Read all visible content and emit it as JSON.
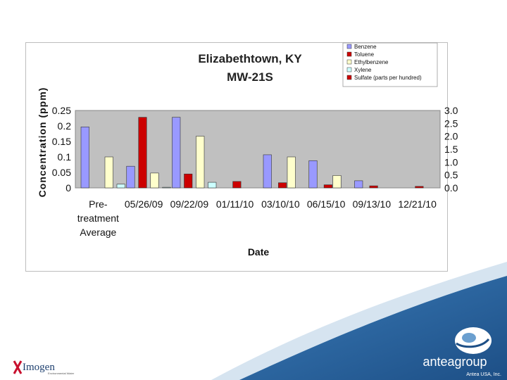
{
  "chart_data": {
    "type": "bar",
    "title": [
      "Elizabethtown, KY",
      "MW-21S"
    ],
    "xlabel": "Date",
    "ylabel": "Concentration (ppm)",
    "ylim": [
      0,
      0.25
    ],
    "y2lim": [
      0,
      3.0
    ],
    "yticks": [
      "0.25",
      "0.2",
      "0.15",
      "0.1",
      "0.05",
      "0"
    ],
    "y2ticks": [
      "3.0",
      "2.5",
      "2.0",
      "1.5",
      "1.0",
      "0.5",
      "0.0"
    ],
    "categories": [
      [
        "Pre-",
        "treatment",
        "Average"
      ],
      [
        "05/26/09"
      ],
      [
        "09/22/09"
      ],
      [
        "01/11/10"
      ],
      [
        "03/10/10"
      ],
      [
        "06/15/10"
      ],
      [
        "09/13/10"
      ],
      [
        "12/21/10"
      ]
    ],
    "legend_position": "top-right",
    "grid": false,
    "series": [
      {
        "name": "Benzene",
        "axis": "left",
        "color": "#9999ff",
        "values": [
          0.197,
          0.07,
          0.228,
          0,
          0.107,
          0.088,
          0.023,
          0
        ]
      },
      {
        "name": "Toluene",
        "axis": "left",
        "color": "#cc0000",
        "values": [
          0,
          0.228,
          0.045,
          0,
          0,
          0,
          0,
          0
        ]
      },
      {
        "name": "Ethylbenzene",
        "axis": "left",
        "color": "#ffffcc",
        "values": [
          0.1,
          0.048,
          0.167,
          0,
          0.1,
          0.04,
          0,
          0
        ]
      },
      {
        "name": "Xylene",
        "axis": "left",
        "color": "#ccffff",
        "values": [
          0.012,
          0.002,
          0.018,
          0,
          0,
          0,
          0,
          0
        ]
      },
      {
        "name": "Sulfate (parts per hundred)",
        "axis": "right",
        "color": "#cc0000",
        "values": [
          0,
          0,
          0,
          0.25,
          0.2,
          0.12,
          0.08,
          0.06
        ]
      }
    ]
  },
  "branding": {
    "imogen_name": "Imogen",
    "imogen_tagline": "Environmental Water",
    "antea_name": "anteagroup",
    "copyright": "Antea USA, Inc."
  }
}
